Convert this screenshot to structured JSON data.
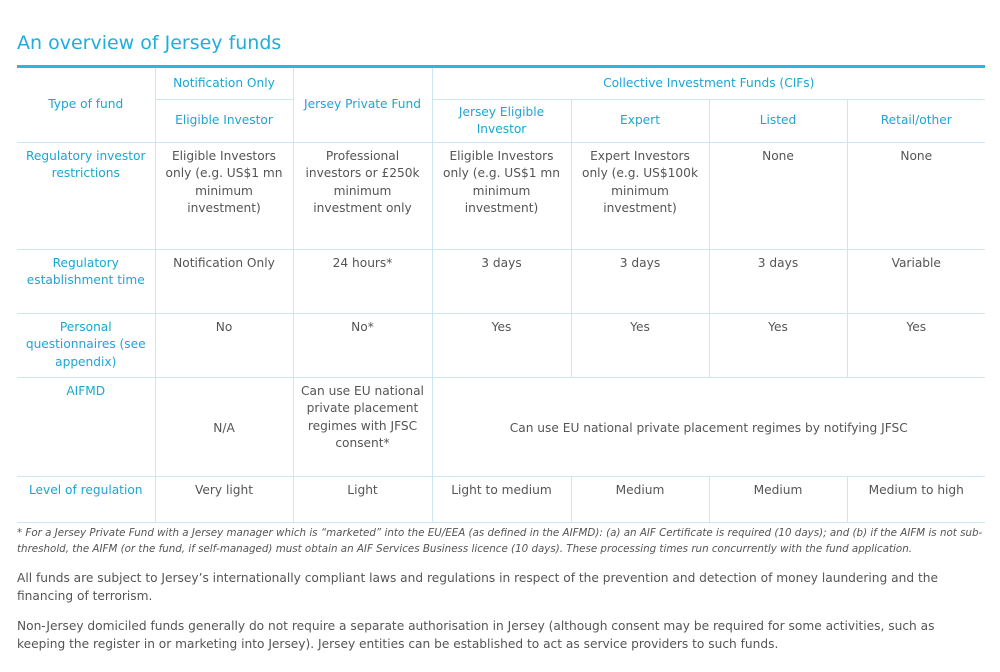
{
  "title": "An overview of Jersey funds",
  "colors": {
    "accent": "#1eaedb",
    "rule": "#2bb5e3",
    "grid": "#cde6f3",
    "text": "#555555"
  },
  "header": {
    "type_of_fund": "Type of fund",
    "notification_only": "Notification Only",
    "eligible_investor": "Eligible Investor",
    "jersey_private_fund": "Jersey Private Fund",
    "cifs": "Collective Investment Funds (CIFs)",
    "cif_columns": [
      "Jersey Eligible Investor",
      "Expert",
      "Listed",
      "Retail/other"
    ]
  },
  "rows": [
    {
      "label": "Regulatory investor restrictions",
      "cells": [
        "Eligible Investors only (e.g. US$1 mn minimum investment)",
        "Professional investors or £250k minimum investment only",
        "Eligible Investors only (e.g. US$1 mn minimum investment)",
        "Expert Investors only (e.g. US$100k minimum investment)",
        "None",
        "None"
      ]
    },
    {
      "label": "Regulatory establishment time",
      "cells": [
        "Notification Only",
        "24 hours*",
        "3 days",
        "3 days",
        "3 days",
        "Variable"
      ]
    },
    {
      "label": "Personal questionnaires (see appendix)",
      "cells": [
        "No",
        "No*",
        "Yes",
        "Yes",
        "Yes",
        "Yes"
      ]
    },
    {
      "label": "AIFMD",
      "cells": [
        "N/A",
        "Can use EU national private placement regimes with JFSC consent*",
        "Can use EU national private placement regimes by notifying JFSC"
      ]
    },
    {
      "label": "Level of regulation",
      "cells": [
        "Very light",
        "Light",
        "Light to medium",
        "Medium",
        "Medium",
        "Medium to high"
      ]
    }
  ],
  "footnote": "* For a Jersey Private Fund with a Jersey manager which is “marketed” into the EU/EEA (as defined in the AIFMD): (a) an AIF Certificate is required (10 days); and (b) if the AIFM is not sub-threshold, the AIFM (or the fund, if self-managed) must obtain an AIF Services Business licence (10 days). These processing times run concurrently with the fund application.",
  "paragraphs": [
    "All funds are subject to Jersey’s internationally compliant laws and regulations in respect of the prevention and detection of money laundering and the financing of terrorism.",
    "Non-Jersey domiciled funds generally do not require a separate authorisation in Jersey (although consent may be required for some activities, such as keeping the register in or marketing into Jersey). Jersey entities can be established to act as service providers to such funds."
  ]
}
